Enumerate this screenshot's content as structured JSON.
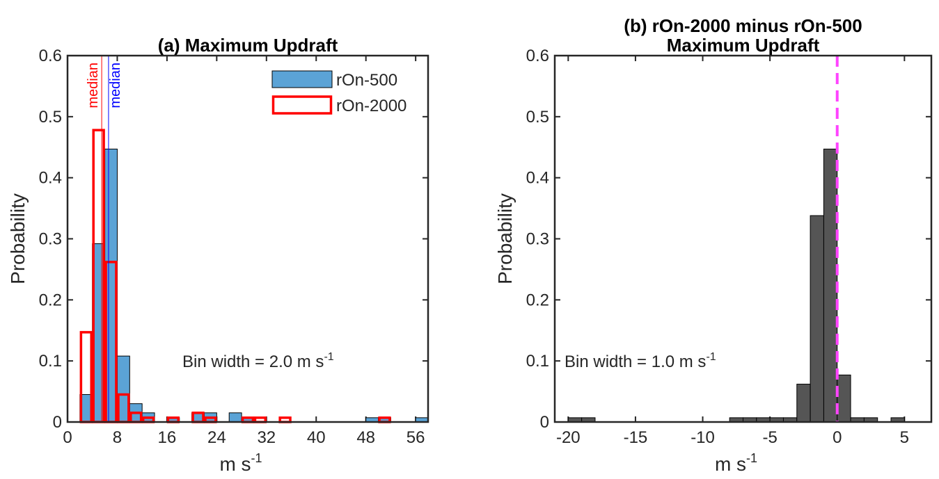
{
  "chart_data": [
    {
      "type": "histogram",
      "title": [
        "(a) Maximum Updraft"
      ],
      "ylabel": "Probability",
      "xlabel": "m s",
      "xlabel_sup": "-1",
      "annotation": {
        "text": "Bin width = 2.0 m s",
        "sup": "-1"
      },
      "bins": [
        2,
        4,
        6,
        8,
        10,
        12,
        14,
        16,
        18,
        20,
        22,
        24,
        26,
        28,
        30,
        32,
        34,
        36,
        38,
        40,
        42,
        44,
        46,
        48,
        50,
        52,
        54,
        56,
        58
      ],
      "series": [
        {
          "name": "rOn-500",
          "color": "#5ba3d6",
          "edgecolor": "#000000",
          "values": [
            0.045,
            0.292,
            0.447,
            0.108,
            0.03,
            0.015,
            0,
            0.007,
            0,
            0.015,
            0.015,
            0,
            0.015,
            0.007,
            0,
            0,
            0,
            0,
            0,
            0,
            0,
            0,
            0,
            0.007,
            0.007,
            0,
            0,
            0.007
          ]
        },
        {
          "name": "rOn-2000",
          "color": "none",
          "edgecolor": "#ff0000",
          "values": [
            0.147,
            0.478,
            0.262,
            0.045,
            0.015,
            0.007,
            0,
            0.007,
            0,
            0.015,
            0.007,
            0,
            0,
            0.007,
            0.007,
            0,
            0.007,
            0,
            0,
            0,
            0,
            0,
            0,
            0,
            0.007,
            0,
            0,
            0
          ]
        }
      ],
      "medians": [
        {
          "value": 5.5,
          "label": "median",
          "color": "#ff0000"
        },
        {
          "value": 6.6,
          "label": "median",
          "color": "#0000ff"
        }
      ],
      "xlim": [
        0,
        58
      ],
      "ylim": [
        0,
        0.6
      ],
      "xticks": [
        0,
        8,
        16,
        24,
        32,
        40,
        48,
        56
      ],
      "yticks": [
        0,
        0.1,
        0.2,
        0.3,
        0.4,
        0.5,
        0.6
      ],
      "legend": "upper right"
    },
    {
      "type": "histogram",
      "title": [
        "(b) rOn-2000 minus rOn-500",
        "Maximum Updraft"
      ],
      "ylabel": "Probability",
      "xlabel": "m s",
      "xlabel_sup": "-1",
      "annotation": {
        "text": "Bin width = 1.0 m s",
        "sup": "-1"
      },
      "bins": [
        -20,
        -19,
        -18,
        -17,
        -16,
        -15,
        -14,
        -13,
        -12,
        -11,
        -10,
        -9,
        -8,
        -7,
        -6,
        -5,
        -4,
        -3,
        -2,
        -1,
        0,
        1,
        2,
        3,
        4,
        5
      ],
      "series": [
        {
          "color": "#555555",
          "edgecolor": "#000000",
          "values": [
            0.007,
            0.007,
            0,
            0,
            0,
            0,
            0,
            0,
            0,
            0,
            0,
            0,
            0.007,
            0.007,
            0.007,
            0.007,
            0.007,
            0.062,
            0.338,
            0.447,
            0.077,
            0.007,
            0.007,
            0,
            0.007
          ]
        }
      ],
      "vline": {
        "value": 0,
        "color": "#ff44ff"
      },
      "xlim": [
        -21,
        7
      ],
      "ylim": [
        0,
        0.6
      ],
      "xticks": [
        -20,
        -15,
        -10,
        -5,
        0,
        5
      ],
      "yticks": [
        0,
        0.1,
        0.2,
        0.3,
        0.4,
        0.5,
        0.6
      ]
    }
  ]
}
